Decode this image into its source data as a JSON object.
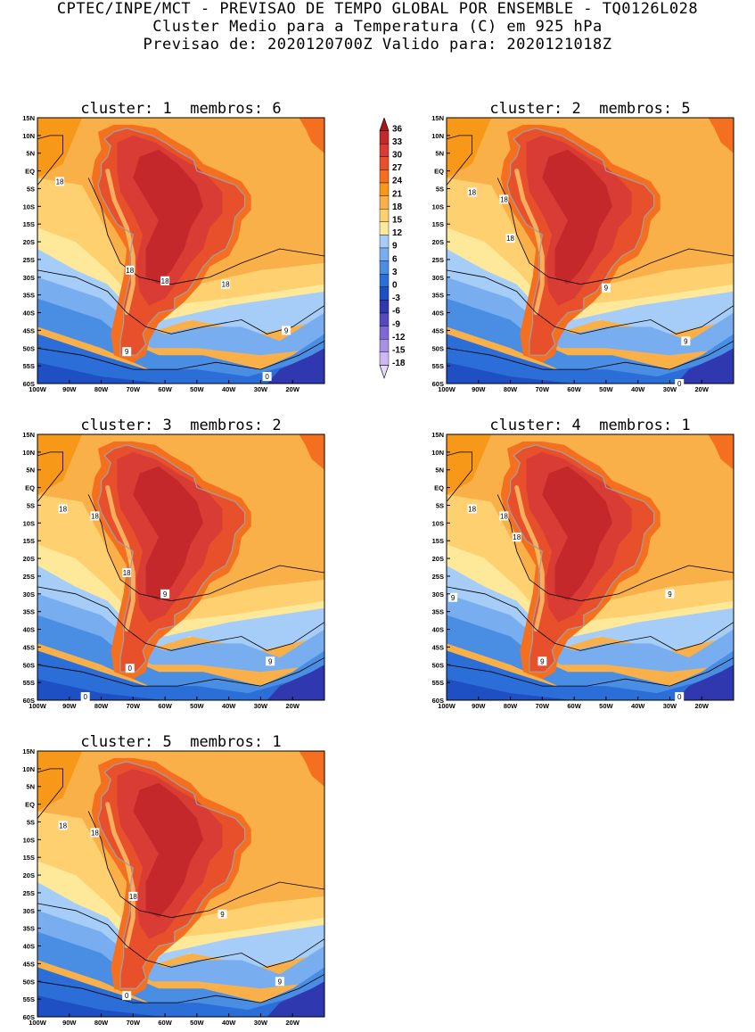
{
  "header": {
    "line1": "CPTEC/INPE/MCT - PREVISAO DE TEMPO GLOBAL POR ENSEMBLE - TQ0126L028",
    "line2": "Cluster Medio para a Temperatura (C) em 925 hPa",
    "line3": "Previsao de: 2020120700Z   Valido para: 2020121018Z"
  },
  "axes": {
    "lat_labels": [
      "15N",
      "10N",
      "5N",
      "EQ",
      "5S",
      "10S",
      "15S",
      "20S",
      "25S",
      "30S",
      "35S",
      "40S",
      "45S",
      "50S",
      "55S",
      "60S"
    ],
    "lon_labels": [
      "100W",
      "90W",
      "80W",
      "70W",
      "60W",
      "50W",
      "40W",
      "30W",
      "20W"
    ],
    "lat_range": [
      -60,
      15
    ],
    "lon_range": [
      -100,
      -10
    ]
  },
  "colorbar": {
    "levels": [
      "36",
      "33",
      "30",
      "27",
      "24",
      "21",
      "18",
      "15",
      "12",
      "9",
      "6",
      "3",
      "0",
      "-3",
      "-6",
      "-9",
      "-12",
      "-15",
      "-18"
    ],
    "colors": [
      "#a8181c",
      "#c4282a",
      "#d83c34",
      "#e8502c",
      "#f47020",
      "#f89818",
      "#fab048",
      "#fed070",
      "#fee89a",
      "#a6cdf8",
      "#78aef0",
      "#4a8ee4",
      "#2c6ed8",
      "#1e50c4",
      "#3038b0",
      "#5848c0",
      "#7e68d4",
      "#a890e4",
      "#ccb8f2",
      "#e4daf8"
    ]
  },
  "chart_data": [
    {
      "type": "map",
      "title": "cluster: 1  membros: 6",
      "cluster": "1",
      "membros": "6",
      "contour_labels": [
        "18",
        "18",
        "18",
        "18",
        "9",
        "9",
        "0"
      ]
    },
    {
      "type": "map",
      "title": "cluster: 2  membros: 5",
      "cluster": "2",
      "membros": "5",
      "contour_labels": [
        "18",
        "18",
        "18",
        "9",
        "9",
        "0"
      ]
    },
    {
      "type": "map",
      "title": "cluster: 3  membros: 2",
      "cluster": "3",
      "membros": "2",
      "contour_labels": [
        "18",
        "18",
        "18",
        "9",
        "9",
        "0",
        "0"
      ]
    },
    {
      "type": "map",
      "title": "cluster: 4  membros: 1",
      "cluster": "4",
      "membros": "1",
      "contour_labels": [
        "18",
        "18",
        "18",
        "9",
        "9",
        "9",
        "0"
      ]
    },
    {
      "type": "map",
      "title": "cluster: 5  membros: 1",
      "cluster": "5",
      "membros": "1",
      "contour_labels": [
        "18",
        "18",
        "18",
        "9",
        "9",
        "0"
      ]
    }
  ]
}
